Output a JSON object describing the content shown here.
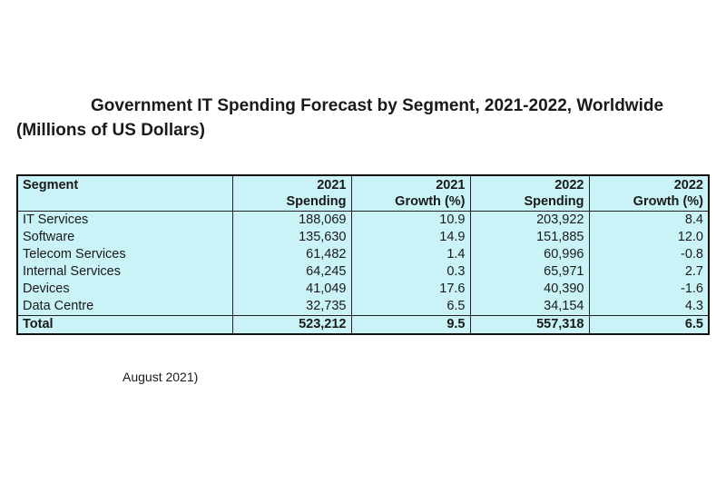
{
  "title_line1": "Government IT Spending Forecast by Segment, 2021-2022, Worldwide",
  "title_line2": "(Millions of US Dollars)",
  "footnote": "August 2021)",
  "chart_data": {
    "type": "table",
    "columns": [
      {
        "line1": "Segment",
        "line2": ""
      },
      {
        "line1": "2021",
        "line2": "Spending"
      },
      {
        "line1": "2021",
        "line2": "Growth (%)"
      },
      {
        "line1": "2022",
        "line2": "Spending"
      },
      {
        "line1": "2022",
        "line2": "Growth (%)"
      }
    ],
    "rows": [
      {
        "segment": "IT Services",
        "spending_2021": "188,069",
        "growth_2021": "10.9",
        "spending_2022": "203,922",
        "growth_2022": "8.4"
      },
      {
        "segment": "Software",
        "spending_2021": "135,630",
        "growth_2021": "14.9",
        "spending_2022": "151,885",
        "growth_2022": "12.0"
      },
      {
        "segment": "Telecom Services",
        "spending_2021": "61,482",
        "growth_2021": "1.4",
        "spending_2022": "60,996",
        "growth_2022": "-0.8"
      },
      {
        "segment": "Internal Services",
        "spending_2021": "64,245",
        "growth_2021": "0.3",
        "spending_2022": "65,971",
        "growth_2022": "2.7"
      },
      {
        "segment": "Devices",
        "spending_2021": "41,049",
        "growth_2021": "17.6",
        "spending_2022": "40,390",
        "growth_2022": "-1.6"
      },
      {
        "segment": "Data Centre",
        "spending_2021": "32,735",
        "growth_2021": "6.5",
        "spending_2022": "34,154",
        "growth_2022": "4.3"
      }
    ],
    "total": {
      "segment": "Total",
      "spending_2021": "523,212",
      "growth_2021": "9.5",
      "spending_2022": "557,318",
      "growth_2022": "6.5"
    }
  }
}
